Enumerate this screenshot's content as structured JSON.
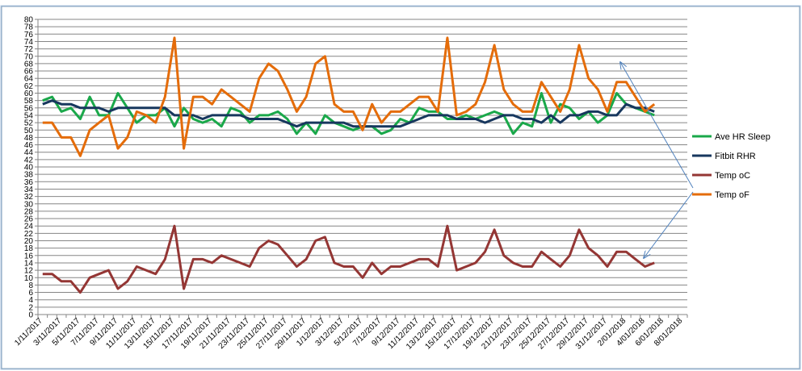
{
  "chart_data": {
    "type": "line",
    "categories": [
      "1/11/2017",
      null,
      "3/11/2017",
      null,
      "5/11/2017",
      null,
      "7/11/2017",
      null,
      "9/11/2017",
      null,
      "11/11/2017",
      null,
      "13/11/2017",
      null,
      "15/11/2017",
      null,
      "17/11/2017",
      null,
      "19/11/2017",
      null,
      "21/11/2017",
      null,
      "23/11/2017",
      null,
      "25/11/2017",
      null,
      "27/11/2017",
      null,
      "29/11/2017",
      null,
      "1/12/2017",
      null,
      "3/12/2017",
      null,
      "5/12/2017",
      null,
      "7/12/2017",
      null,
      "9/12/2017",
      null,
      "11/12/2017",
      null,
      "13/12/2017",
      null,
      "15/12/2017",
      null,
      "17/12/2017",
      null,
      "19/12/2017",
      null,
      "21/12/2017",
      null,
      "23/12/2017",
      null,
      "25/12/2017",
      null,
      "27/12/2017",
      null,
      "29/12/2017",
      null,
      "31/12/2017",
      null,
      "2/01/2018",
      null,
      "4/01/2018",
      null,
      "6/01/2018",
      null,
      "8/01/2018"
    ],
    "series": [
      {
        "name": "Ave HR Sleep",
        "color": "#1aa84a",
        "values": [
          58,
          59,
          55,
          56,
          53,
          59,
          54,
          54,
          60,
          56,
          52,
          54,
          54,
          56,
          51,
          56,
          53,
          52,
          53,
          51,
          56,
          55,
          52,
          54,
          54,
          55,
          53,
          49,
          52,
          49,
          54,
          52,
          51,
          50,
          51,
          51,
          49,
          50,
          53,
          52,
          56,
          55,
          55,
          53,
          53,
          54,
          53,
          54,
          55,
          54,
          49,
          52,
          51,
          60,
          52,
          57,
          56,
          53,
          55,
          52,
          54,
          60,
          57,
          56,
          55,
          54,
          null,
          null,
          null
        ]
      },
      {
        "name": "Fitbit RHR",
        "color": "#17375e",
        "values": [
          57,
          58,
          57,
          57,
          56,
          56,
          56,
          55,
          56,
          56,
          56,
          56,
          56,
          56,
          54,
          54,
          54,
          53,
          54,
          54,
          54,
          54,
          53,
          53,
          53,
          53,
          52,
          51,
          52,
          52,
          52,
          52,
          52,
          51,
          51,
          51,
          51,
          51,
          51,
          52,
          53,
          54,
          54,
          54,
          53,
          53,
          53,
          52,
          53,
          54,
          54,
          53,
          53,
          52,
          54,
          52,
          54,
          54,
          55,
          55,
          54,
          54,
          57,
          56,
          56,
          55,
          null,
          null,
          null
        ]
      },
      {
        "name": "Temp oC",
        "color": "#943634",
        "values": [
          11,
          11,
          9,
          9,
          6,
          10,
          11,
          12,
          7,
          9,
          13,
          12,
          11,
          15,
          24,
          7,
          15,
          15,
          14,
          16,
          15,
          14,
          13,
          18,
          20,
          19,
          16,
          13,
          15,
          20,
          21,
          14,
          13,
          13,
          10,
          14,
          11,
          13,
          13,
          14,
          15,
          15,
          13,
          24,
          12,
          13,
          14,
          17,
          23,
          16,
          14,
          13,
          13,
          17,
          15,
          13,
          16,
          23,
          18,
          16,
          13,
          17,
          17,
          15,
          13,
          14,
          null,
          null,
          null
        ]
      },
      {
        "name": "Temp oF",
        "color": "#e46c0a",
        "values": [
          52,
          52,
          48,
          48,
          43,
          50,
          52,
          54,
          45,
          48,
          55,
          54,
          52,
          59,
          75,
          45,
          59,
          59,
          57,
          61,
          59,
          57,
          55,
          64,
          68,
          66,
          61,
          55,
          59,
          68,
          70,
          57,
          55,
          55,
          50,
          57,
          52,
          55,
          55,
          57,
          59,
          59,
          55,
          75,
          54,
          55,
          57,
          63,
          73,
          61,
          57,
          55,
          55,
          63,
          59,
          55,
          61,
          73,
          64,
          61,
          55,
          63,
          63,
          59,
          55,
          57,
          null,
          null,
          null
        ]
      }
    ],
    "ylim": [
      0,
      80
    ],
    "yticks": [
      0,
      2,
      4,
      6,
      8,
      10,
      12,
      14,
      16,
      18,
      20,
      22,
      24,
      26,
      28,
      30,
      32,
      34,
      36,
      38,
      40,
      42,
      44,
      46,
      48,
      50,
      52,
      54,
      56,
      58,
      60,
      62,
      64,
      66,
      68,
      70,
      72,
      74,
      76,
      78,
      80
    ],
    "grid": true,
    "legend": "right"
  }
}
